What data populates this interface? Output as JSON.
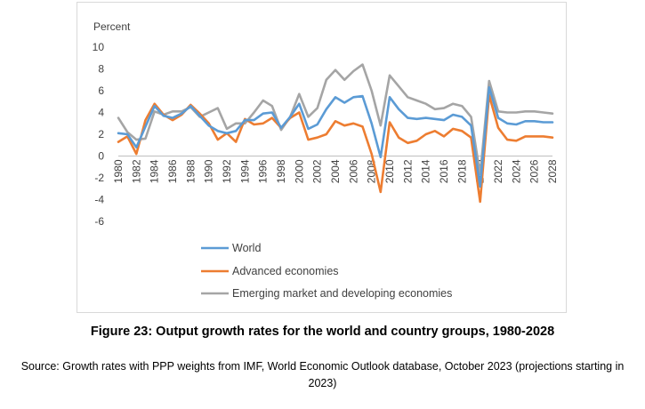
{
  "chart_data": {
    "type": "line",
    "ylabel": "Percent",
    "ylim": [
      -6,
      10
    ],
    "yticks": [
      10,
      8,
      6,
      4,
      2,
      0,
      -2,
      -4,
      -6
    ],
    "x": [
      1980,
      1981,
      1982,
      1983,
      1984,
      1985,
      1986,
      1987,
      1988,
      1989,
      1990,
      1991,
      1992,
      1993,
      1994,
      1995,
      1996,
      1997,
      1998,
      1999,
      2000,
      2001,
      2002,
      2003,
      2004,
      2005,
      2006,
      2007,
      2008,
      2009,
      2010,
      2011,
      2012,
      2013,
      2014,
      2015,
      2016,
      2017,
      2018,
      2019,
      2020,
      2021,
      2022,
      2023,
      2024,
      2025,
      2026,
      2027,
      2028
    ],
    "xticks": [
      "1980",
      "1982",
      "1984",
      "1986",
      "1988",
      "1990",
      "1992",
      "1994",
      "1996",
      "1998",
      "2000",
      "2002",
      "2004",
      "2006",
      "2008",
      "2010",
      "2012",
      "2014",
      "2016",
      "2018",
      "2020",
      "2022",
      "2024",
      "2026",
      "2028"
    ],
    "legend_position": "bottom",
    "grid": false,
    "series": [
      {
        "name": "World",
        "color": "#5B9BD5",
        "values": [
          2.1,
          2.0,
          0.8,
          2.7,
          4.6,
          3.7,
          3.5,
          3.9,
          4.6,
          3.7,
          2.8,
          2.3,
          2.1,
          2.3,
          3.3,
          3.3,
          3.9,
          4.0,
          2.6,
          3.6,
          4.8,
          2.5,
          2.9,
          4.3,
          5.4,
          4.9,
          5.4,
          5.5,
          3.0,
          -0.1,
          5.4,
          4.3,
          3.5,
          3.4,
          3.5,
          3.4,
          3.3,
          3.8,
          3.6,
          2.8,
          -2.8,
          6.3,
          3.5,
          3.0,
          2.9,
          3.2,
          3.2,
          3.1,
          3.1
        ]
      },
      {
        "name": "Advanced economies",
        "color": "#ED7D31",
        "values": [
          1.3,
          1.8,
          0.2,
          3.3,
          4.8,
          3.8,
          3.3,
          3.8,
          4.7,
          3.9,
          3.0,
          1.5,
          2.1,
          1.3,
          3.4,
          2.9,
          3.0,
          3.5,
          2.6,
          3.5,
          4.0,
          1.5,
          1.7,
          2.0,
          3.2,
          2.8,
          3.0,
          2.7,
          0.2,
          -3.3,
          3.1,
          1.7,
          1.2,
          1.4,
          2.0,
          2.3,
          1.8,
          2.5,
          2.3,
          1.7,
          -4.2,
          5.6,
          2.6,
          1.5,
          1.4,
          1.8,
          1.8,
          1.8,
          1.7
        ]
      },
      {
        "name": "Emerging market and developing economies",
        "color": "#A5A5A5",
        "values": [
          3.5,
          2.2,
          1.5,
          1.6,
          4.1,
          3.8,
          4.1,
          4.1,
          4.5,
          3.6,
          4.0,
          4.4,
          2.5,
          3.0,
          3.0,
          4.0,
          5.1,
          4.6,
          2.4,
          3.6,
          5.7,
          3.6,
          4.4,
          7.0,
          7.9,
          7.0,
          7.8,
          8.4,
          6.0,
          2.8,
          7.4,
          6.4,
          5.4,
          5.1,
          4.8,
          4.3,
          4.4,
          4.8,
          4.6,
          3.6,
          -1.7,
          6.9,
          4.1,
          4.0,
          4.0,
          4.1,
          4.1,
          4.0,
          3.9
        ]
      }
    ]
  },
  "caption": "Figure 23: Output growth rates for the world and country groups, 1980-2028",
  "source": "Source: Growth rates with PPP weights from IMF, World Economic Outlook database, October 2023 (projections starting in 2023)"
}
